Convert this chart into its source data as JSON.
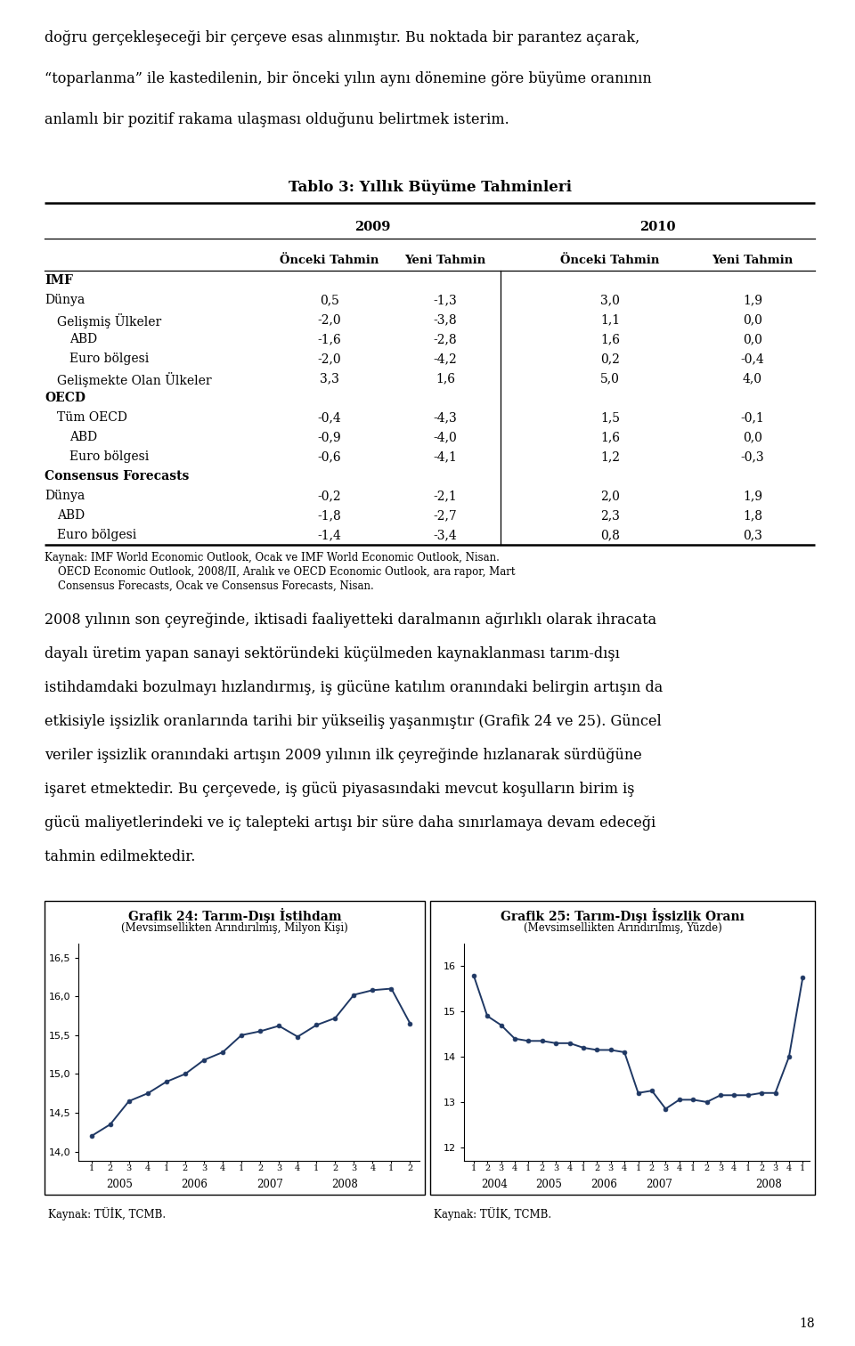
{
  "page_text_top": "doğru gerçekleşeceği bir çerçeve esas alınmıştır. Bu noktada bir parantez açarak,\n“toparlanma” ile kastedilenin, bir önceki yılın aynı dönemine göre büyüme oranının\nanlamlı bir pozitif rakama ulaşması olduğunu belirtmek isterim.",
  "table_title": "Tablo 3: Yıllık Büyüme Tahminleri",
  "table_rows": [
    {
      "label": "IMF",
      "bold": true,
      "indent": 0,
      "values": [
        "",
        "",
        "",
        ""
      ]
    },
    {
      "label": "Dünya",
      "bold": false,
      "indent": 0,
      "values": [
        "0,5",
        "-1,3",
        "3,0",
        "1,9"
      ]
    },
    {
      "label": "Gelişmiş Ülkeler",
      "bold": false,
      "indent": 1,
      "values": [
        "-2,0",
        "-3,8",
        "1,1",
        "0,0"
      ]
    },
    {
      "label": "ABD",
      "bold": false,
      "indent": 2,
      "values": [
        "-1,6",
        "-2,8",
        "1,6",
        "0,0"
      ]
    },
    {
      "label": "Euro bölgesi",
      "bold": false,
      "indent": 2,
      "values": [
        "-2,0",
        "-4,2",
        "0,2",
        "-0,4"
      ]
    },
    {
      "label": "Gelişmekte Olan Ülkeler",
      "bold": false,
      "indent": 1,
      "values": [
        "3,3",
        "1,6",
        "5,0",
        "4,0"
      ]
    },
    {
      "label": "OECD",
      "bold": true,
      "indent": 0,
      "values": [
        "",
        "",
        "",
        ""
      ]
    },
    {
      "label": "Tüm OECD",
      "bold": false,
      "indent": 1,
      "values": [
        "-0,4",
        "-4,3",
        "1,5",
        "-0,1"
      ]
    },
    {
      "label": "ABD",
      "bold": false,
      "indent": 2,
      "values": [
        "-0,9",
        "-4,0",
        "1,6",
        "0,0"
      ]
    },
    {
      "label": "Euro bölgesi",
      "bold": false,
      "indent": 2,
      "values": [
        "-0,6",
        "-4,1",
        "1,2",
        "-0,3"
      ]
    },
    {
      "label": "Consensus Forecasts",
      "bold": true,
      "indent": 0,
      "values": [
        "",
        "",
        "",
        ""
      ]
    },
    {
      "label": "Dünya",
      "bold": false,
      "indent": 0,
      "values": [
        "-0,2",
        "-2,1",
        "2,0",
        "1,9"
      ]
    },
    {
      "label": "ABD",
      "bold": false,
      "indent": 1,
      "values": [
        "-1,8",
        "-2,7",
        "2,3",
        "1,8"
      ]
    },
    {
      "label": "Euro bölgesi",
      "bold": false,
      "indent": 1,
      "values": [
        "-1,4",
        "-3,4",
        "0,8",
        "0,3"
      ]
    }
  ],
  "source_lines": [
    "Kaynak: IMF World Economic Outlook, Ocak ve IMF World Economic Outlook, Nisan.",
    "    OECD Economic Outlook, 2008/II, Aralık ve OECD Economic Outlook, ara rapor, Mart",
    "    Consensus Forecasts, Ocak ve Consensus Forecasts, Nisan."
  ],
  "body_text_lines": [
    "2008 yılının son çeyreğinde, iktisadi faaliyetteki daralmanın ağırlıklı olarak ihracata",
    "dayalı üretim yapan sanayi sektöründeki küçülmeden kaynaklanması tarım-dışı",
    "istihdamdaki bozulmayı hızlandırmış, iş gücüne katılım oranındaki belirgin artışın da",
    "etkisiyle işsizlik oranlarında tarihi bir yükseiliş yaşanmıştır (Grafik 24 ve 25). Güncel",
    "veriler işsizlik oranındaki artışın 2009 yılının ilk çeyreğinde hızlanarak sürdüğüne",
    "işaret etmektedir. Bu çerçevede, iş gücü piyasasındaki mevcut koşulların birim iş",
    "gücü maliyetlerindeki ve iç talepteki artışı bir süre daha sınırlamaya devam edeceği",
    "tahmin edilmektedir."
  ],
  "chart1_title": "Grafik 24: Tarım-Dışı İstihdam",
  "chart1_subtitle": "(Mevsimsellikten Arındırılmış, Milyon Kişi)",
  "chart1_ylabel_values": [
    14.0,
    14.5,
    15.0,
    15.5,
    16.0,
    16.5
  ],
  "chart1_ylim": [
    13.88,
    16.68
  ],
  "chart1_year_labels": [
    "2005",
    "2006",
    "2007",
    "2008"
  ],
  "chart1_data": [
    14.2,
    14.35,
    14.65,
    14.75,
    14.9,
    15.0,
    15.18,
    15.28,
    15.5,
    15.55,
    15.62,
    15.48,
    15.63,
    15.72,
    16.02,
    16.08,
    16.1,
    15.65
  ],
  "chart1_n_quarters": 18,
  "chart2_title": "Grafik 25: Tarım-Dışı İşsizlik Oranı",
  "chart2_subtitle": "(Mevsimsellikten Arındırılmış, Yüzde)",
  "chart2_ylabel_values": [
    12,
    13,
    14,
    15,
    16
  ],
  "chart2_ylim": [
    11.7,
    16.5
  ],
  "chart2_year_labels": [
    "2004",
    "2005",
    "2006",
    "2007",
    "2008"
  ],
  "chart2_data": [
    15.8,
    14.9,
    14.7,
    14.4,
    14.35,
    14.35,
    14.3,
    14.3,
    14.2,
    14.15,
    14.15,
    14.1,
    13.2,
    13.25,
    12.85,
    13.05,
    13.05,
    13.0,
    13.15,
    13.15,
    13.15,
    13.2,
    13.2,
    14.0,
    15.75
  ],
  "chart2_n_quarters": 25,
  "chart_source": "Kaynak: TÜİK, TCMB.",
  "line_color": "#1F3864",
  "marker_color": "#1F3864",
  "background_color": "#ffffff",
  "page_number": "18"
}
